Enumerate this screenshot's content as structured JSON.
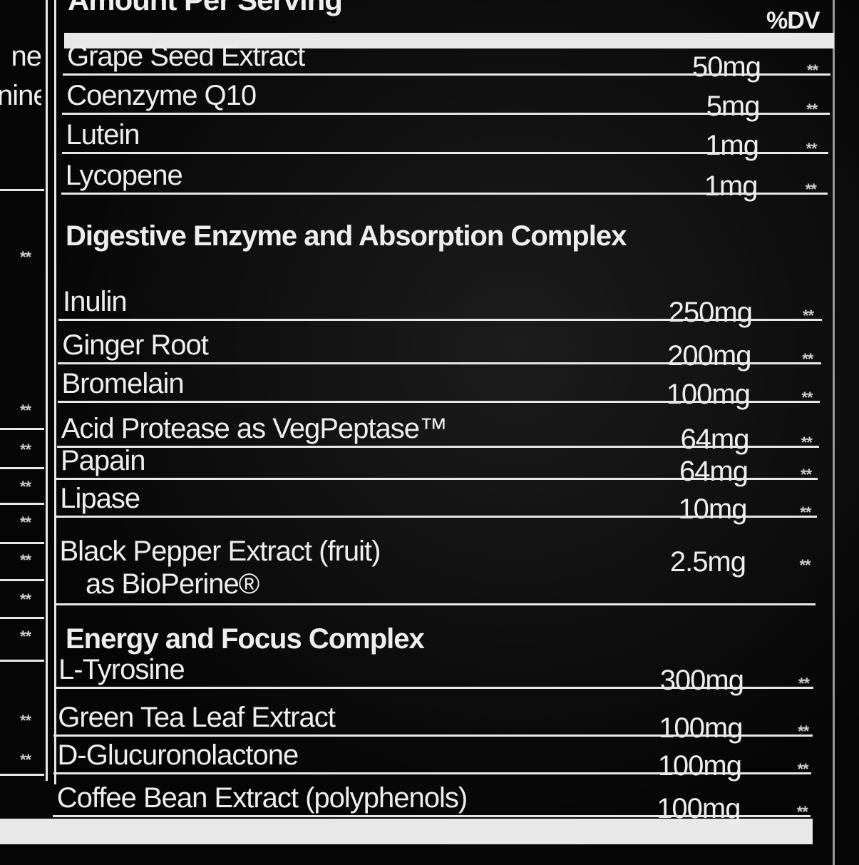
{
  "header": {
    "title": "Amount Per Serving",
    "dv": "%DV"
  },
  "sections": [
    {
      "rows": [
        {
          "name": "Grape Seed Extract",
          "amount": "50mg",
          "dv": "**"
        },
        {
          "name": "Coenzyme Q10",
          "amount": "5mg",
          "dv": "**"
        },
        {
          "name": "Lutein",
          "amount": "1mg",
          "dv": "**"
        },
        {
          "name": "Lycopene",
          "amount": "1mg",
          "dv": "**"
        }
      ]
    },
    {
      "title": "Digestive Enzyme and Absorption Complex",
      "rows": [
        {
          "name": "Inulin",
          "amount": "250mg",
          "dv": "**"
        },
        {
          "name": "Ginger Root",
          "amount": "200mg",
          "dv": "**"
        },
        {
          "name": "Bromelain",
          "amount": "100mg",
          "dv": "**"
        },
        {
          "name": "Acid Protease as VegPeptase™",
          "amount": "64mg",
          "dv": "**"
        },
        {
          "name": "Papain",
          "amount": "64mg",
          "dv": "**"
        },
        {
          "name": "Lipase",
          "amount": "10mg",
          "dv": "**"
        },
        {
          "name": "Black Pepper Extract (fruit)",
          "name_line2": "as BioPerine®",
          "amount": "2.5mg",
          "dv": "**"
        }
      ]
    },
    {
      "title": "Energy and Focus Complex",
      "rows": [
        {
          "name": "L-Tyrosine",
          "amount": "300mg",
          "dv": "**"
        },
        {
          "name": "Green Tea Leaf Extract",
          "amount": "100mg",
          "dv": "**"
        },
        {
          "name": "D-Glucuronolactone",
          "amount": "100mg",
          "dv": "**"
        },
        {
          "name": "Coffee Bean Extract (polyphenols)",
          "amount": "100mg",
          "dv": "**"
        }
      ]
    }
  ],
  "left_column": {
    "texts": [
      "ne",
      "nine"
    ],
    "dv": [
      "**",
      "**",
      "**",
      "**",
      "**",
      "**",
      "**",
      "**",
      "**",
      "**"
    ]
  }
}
